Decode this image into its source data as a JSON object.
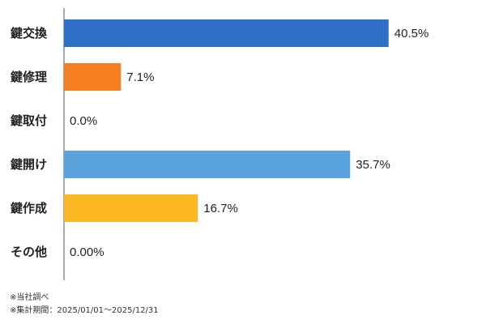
{
  "chart_data": {
    "type": "bar",
    "orientation": "horizontal",
    "categories": [
      "鍵交換",
      "鍵修理",
      "鍵取付",
      "鍵開け",
      "鍵作成",
      "その他"
    ],
    "values": [
      40.5,
      7.1,
      0.0,
      35.7,
      16.7,
      0.0
    ],
    "value_labels": [
      "40.5%",
      "7.1%",
      "0.0%",
      "35.7%",
      "16.7%",
      "0.00%"
    ],
    "colors": [
      "#2e6fc8",
      "#f47e20",
      "#f47e20",
      "#5ba3dd",
      "#fdb924",
      "#999999"
    ],
    "title": "",
    "xlabel": "",
    "ylabel": "",
    "xlim": [
      0,
      48
    ],
    "grid": false,
    "legend": "none"
  },
  "footnotes": {
    "source": "※当社調べ",
    "period": "※集計期間：2025/01/01～2025/12/31"
  }
}
